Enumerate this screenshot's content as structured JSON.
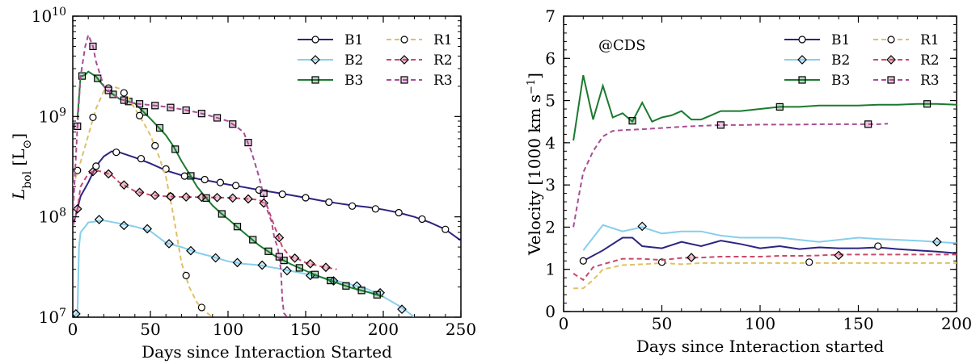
{
  "chart_data": [
    {
      "type": "line",
      "xlabel": "Days since Interaction Started",
      "ylabel": "L_bol [L_⊙]",
      "ylabel_main": "L",
      "ylabel_sub": "bol",
      "ylabel_unit": " [L",
      "ylabel_unit_sub": "⊙",
      "ylabel_close": "]",
      "xlim": [
        0,
        250
      ],
      "ylim": [
        10000000,
        10000000000
      ],
      "yscale": "log",
      "xticks": [
        "0",
        "50",
        "100",
        "150",
        "200",
        "250"
      ],
      "yticks": [
        {
          "base": "10",
          "exp": "7"
        },
        {
          "base": "10",
          "exp": "8"
        },
        {
          "base": "10",
          "exp": "9"
        },
        {
          "base": "10",
          "exp": "10"
        }
      ],
      "grid": false,
      "legend_position": "top-right",
      "series": [
        {
          "name": "B1",
          "color": "#2c2480",
          "style": "solid",
          "marker": "circle",
          "x": [
            0,
            3,
            5,
            10,
            15,
            20,
            25,
            30,
            40,
            50,
            60,
            70,
            80,
            90,
            100,
            110,
            120,
            130,
            140,
            150,
            160,
            170,
            180,
            190,
            200,
            210,
            220,
            230,
            240,
            250
          ],
          "y": [
            80000000,
            120000000,
            160000000,
            220000000,
            320000000,
            400000000,
            450000000,
            440000000,
            390000000,
            340000000,
            290000000,
            260000000,
            240000000,
            225000000,
            210000000,
            198000000,
            185000000,
            175000000,
            165000000,
            155000000,
            145000000,
            137000000,
            130000000,
            125000000,
            118000000,
            110000000,
            100000000,
            88000000,
            75000000,
            58000000
          ],
          "marker_x": [
            15,
            28,
            44,
            60,
            72,
            85,
            95,
            105,
            120,
            135,
            150,
            165,
            180,
            195,
            210,
            225,
            240
          ],
          "marker_y": [
            320000000,
            440000000,
            380000000,
            300000000,
            255000000,
            235000000,
            220000000,
            205000000,
            185000000,
            168000000,
            155000000,
            140000000,
            128000000,
            120000000,
            110000000,
            95000000,
            75000000
          ]
        },
        {
          "name": "B2",
          "color": "#87ceeb",
          "style": "solid",
          "marker": "diamond",
          "x": [
            0,
            3,
            4,
            5,
            8,
            10,
            15,
            20,
            30,
            40,
            50,
            60,
            70,
            80,
            90,
            100,
            110,
            120,
            130,
            140,
            150,
            160,
            170,
            180,
            190,
            200,
            210,
            215,
            220
          ],
          "y": [
            10000000,
            11000000,
            50000000,
            70000000,
            80000000,
            88000000,
            90000000,
            92000000,
            86000000,
            80000000,
            72000000,
            55000000,
            50000000,
            44000000,
            40000000,
            36000000,
            34000000,
            33000000,
            31000000,
            29000000,
            27000000,
            25000000,
            23000000,
            21000000,
            19000000,
            16000000,
            13000000,
            11500000,
            10000000
          ],
          "marker_x": [
            2,
            17,
            33,
            48,
            62,
            76,
            92,
            106,
            122,
            138,
            153,
            168,
            183,
            198,
            212
          ],
          "marker_y": [
            10800000,
            94000000,
            82000000,
            76000000,
            54000000,
            46000000,
            39000000,
            35000000,
            33000000,
            29000000,
            26000000,
            23000000,
            20500000,
            17500000,
            12000000
          ]
        },
        {
          "name": "B3",
          "color": "#1b7a2f",
          "style": "solid",
          "marker": "square",
          "x": [
            3,
            5,
            8,
            10,
            15,
            20,
            25,
            30,
            40,
            50,
            60,
            65,
            70,
            75,
            80,
            85,
            90,
            95,
            100,
            110,
            120,
            130,
            140,
            150,
            160,
            170,
            180,
            190,
            200
          ],
          "y": [
            950000000,
            2500000000,
            2600000000,
            2800000000,
            2500000000,
            2000000000,
            1700000000,
            1500000000,
            1350000000,
            950000000,
            650000000,
            500000000,
            360000000,
            270000000,
            200000000,
            160000000,
            130000000,
            110000000,
            95000000,
            70000000,
            52000000,
            41000000,
            34000000,
            29000000,
            25000000,
            22000000,
            19500000,
            17800000,
            16000000
          ]
        },
        {
          "name": "R1",
          "color": "#e0c065",
          "style": "dashed",
          "marker": "circle",
          "x": [
            0,
            5,
            10,
            15,
            20,
            25,
            30,
            35,
            40,
            45,
            50,
            55,
            60,
            65,
            70,
            75,
            80,
            85,
            90
          ],
          "y": [
            200000000,
            350000000,
            650000000,
            1200000000,
            1800000000,
            2000000000,
            1900000000,
            1600000000,
            1200000000,
            900000000,
            650000000,
            420000000,
            250000000,
            100000000,
            35000000,
            20000000,
            14000000,
            11500000,
            10000000
          ]
        },
        {
          "name": "R2",
          "color": "#c74a6b",
          "style": "dashed",
          "marker": "diamond",
          "x": [
            0,
            3,
            5,
            10,
            15,
            20,
            25,
            30,
            40,
            50,
            60,
            70,
            80,
            90,
            100,
            110,
            120,
            125,
            130,
            135,
            140,
            145,
            150,
            160,
            170
          ],
          "y": [
            80000000,
            120000000,
            200000000,
            270000000,
            290000000,
            280000000,
            260000000,
            220000000,
            180000000,
            165000000,
            160000000,
            158000000,
            157000000,
            156000000,
            155000000,
            152000000,
            148000000,
            130000000,
            80000000,
            50000000,
            40000000,
            38000000,
            35000000,
            32000000,
            30000000
          ]
        },
        {
          "name": "R3",
          "color": "#a84d95",
          "style": "dashed",
          "marker": "square",
          "x": [
            0,
            3,
            5,
            8,
            10,
            13,
            15,
            18,
            20,
            25,
            30,
            40,
            50,
            60,
            70,
            80,
            90,
            100,
            105,
            110,
            115,
            120,
            125,
            128,
            130,
            132,
            134,
            135,
            136,
            137,
            138
          ],
          "y": [
            100000000,
            800000000,
            2500000000,
            5000000000,
            6500000000,
            5000000000,
            3500000000,
            2500000000,
            2000000000,
            1700000000,
            1500000000,
            1350000000,
            1300000000,
            1250000000,
            1180000000,
            1100000000,
            1000000000,
            900000000,
            800000000,
            700000000,
            450000000,
            250000000,
            120000000,
            90000000,
            60000000,
            50000000,
            30000000,
            15000000,
            11000000,
            10500000,
            10000000
          ]
        }
      ]
    },
    {
      "type": "line",
      "xlabel": "Days since Interaction started",
      "ylabel": "Velocity [1000 km s^-1]",
      "ylabel_main": "Velocity [1000 km s",
      "ylabel_sup": "−1",
      "ylabel_close": "]",
      "annotation": "@CDS",
      "xlim": [
        0,
        200
      ],
      "ylim": [
        0,
        7
      ],
      "xticks": [
        "0",
        "50",
        "100",
        "150",
        "200"
      ],
      "yticks": [
        "0",
        "1",
        "2",
        "3",
        "4",
        "5",
        "6",
        "7"
      ],
      "grid": false,
      "legend_position": "top-right",
      "series": [
        {
          "name": "B1",
          "color": "#2c2480",
          "style": "solid",
          "marker": "circle",
          "x": [
            10,
            20,
            30,
            35,
            40,
            50,
            60,
            70,
            80,
            90,
            100,
            110,
            120,
            130,
            140,
            150,
            160,
            170,
            180,
            190,
            200
          ],
          "y": [
            1.2,
            1.45,
            1.75,
            1.75,
            1.55,
            1.5,
            1.65,
            1.55,
            1.68,
            1.6,
            1.5,
            1.55,
            1.48,
            1.52,
            1.5,
            1.5,
            1.52,
            1.48,
            1.45,
            1.42,
            1.38
          ],
          "marker_x": [
            10,
            160
          ],
          "marker_y": [
            1.2,
            1.55
          ]
        },
        {
          "name": "B2",
          "color": "#87ceeb",
          "style": "solid",
          "marker": "diamond",
          "x": [
            10,
            20,
            30,
            40,
            50,
            60,
            70,
            80,
            90,
            100,
            110,
            120,
            130,
            140,
            150,
            160,
            170,
            180,
            190,
            200
          ],
          "y": [
            1.45,
            2.05,
            1.9,
            2.0,
            1.85,
            1.9,
            1.9,
            1.8,
            1.75,
            1.75,
            1.75,
            1.7,
            1.65,
            1.7,
            1.75,
            1.72,
            1.7,
            1.68,
            1.65,
            1.62
          ],
          "marker_x": [
            40,
            190
          ],
          "marker_y": [
            2.02,
            1.65
          ]
        },
        {
          "name": "B3",
          "color": "#1b7a2f",
          "style": "solid",
          "marker": "square",
          "x": [
            5,
            10,
            15,
            20,
            25,
            30,
            35,
            40,
            45,
            50,
            55,
            60,
            65,
            70,
            75,
            80,
            90,
            100,
            110,
            120,
            130,
            140,
            150,
            160,
            170,
            180,
            190,
            200
          ],
          "y": [
            4.05,
            5.6,
            4.55,
            5.35,
            4.6,
            4.7,
            4.5,
            4.95,
            4.5,
            4.6,
            4.65,
            4.75,
            4.55,
            4.55,
            4.65,
            4.75,
            4.75,
            4.8,
            4.85,
            4.85,
            4.88,
            4.88,
            4.88,
            4.9,
            4.9,
            4.92,
            4.92,
            4.9
          ],
          "marker_x": [
            35,
            110,
            185
          ],
          "marker_y": [
            4.52,
            4.85,
            4.92
          ]
        },
        {
          "name": "R1",
          "color": "#e0c065",
          "style": "dashed",
          "marker": "circle",
          "x": [
            5,
            10,
            15,
            20,
            30,
            40,
            50,
            60,
            70,
            80,
            90,
            100,
            110,
            120,
            130,
            140,
            150,
            160,
            170,
            180,
            190,
            200
          ],
          "y": [
            0.55,
            0.55,
            0.75,
            1.0,
            1.1,
            1.12,
            1.15,
            1.12,
            1.15,
            1.15,
            1.15,
            1.15,
            1.15,
            1.15,
            1.15,
            1.15,
            1.15,
            1.15,
            1.15,
            1.15,
            1.15,
            1.15
          ],
          "marker_x": [
            50,
            125
          ],
          "marker_y": [
            1.17,
            1.17
          ]
        },
        {
          "name": "R2",
          "color": "#c74a6b",
          "style": "dashed",
          "marker": "diamond",
          "x": [
            5,
            10,
            15,
            20,
            30,
            40,
            50,
            60,
            70,
            80,
            90,
            100,
            110,
            120,
            130,
            140,
            150,
            160,
            170,
            180,
            190,
            200
          ],
          "y": [
            0.9,
            0.75,
            1.05,
            1.12,
            1.25,
            1.25,
            1.22,
            1.27,
            1.28,
            1.3,
            1.3,
            1.3,
            1.32,
            1.32,
            1.33,
            1.35,
            1.35,
            1.35,
            1.35,
            1.35,
            1.35,
            1.35
          ],
          "marker_x": [
            65,
            140
          ],
          "marker_y": [
            1.28,
            1.33
          ]
        },
        {
          "name": "R3",
          "color": "#a84d95",
          "style": "dashed",
          "marker": "square",
          "x": [
            5,
            8,
            10,
            15,
            20,
            25,
            30,
            40,
            50,
            60,
            70,
            80,
            90,
            100,
            110,
            120,
            130,
            140,
            150,
            160,
            165
          ],
          "y": [
            2.0,
            2.8,
            3.3,
            3.8,
            4.15,
            4.28,
            4.3,
            4.32,
            4.35,
            4.38,
            4.4,
            4.42,
            4.42,
            4.43,
            4.43,
            4.43,
            4.44,
            4.44,
            4.44,
            4.44,
            4.45
          ],
          "marker_x": [
            80,
            155
          ],
          "marker_y": [
            4.42,
            4.44
          ]
        }
      ]
    }
  ]
}
